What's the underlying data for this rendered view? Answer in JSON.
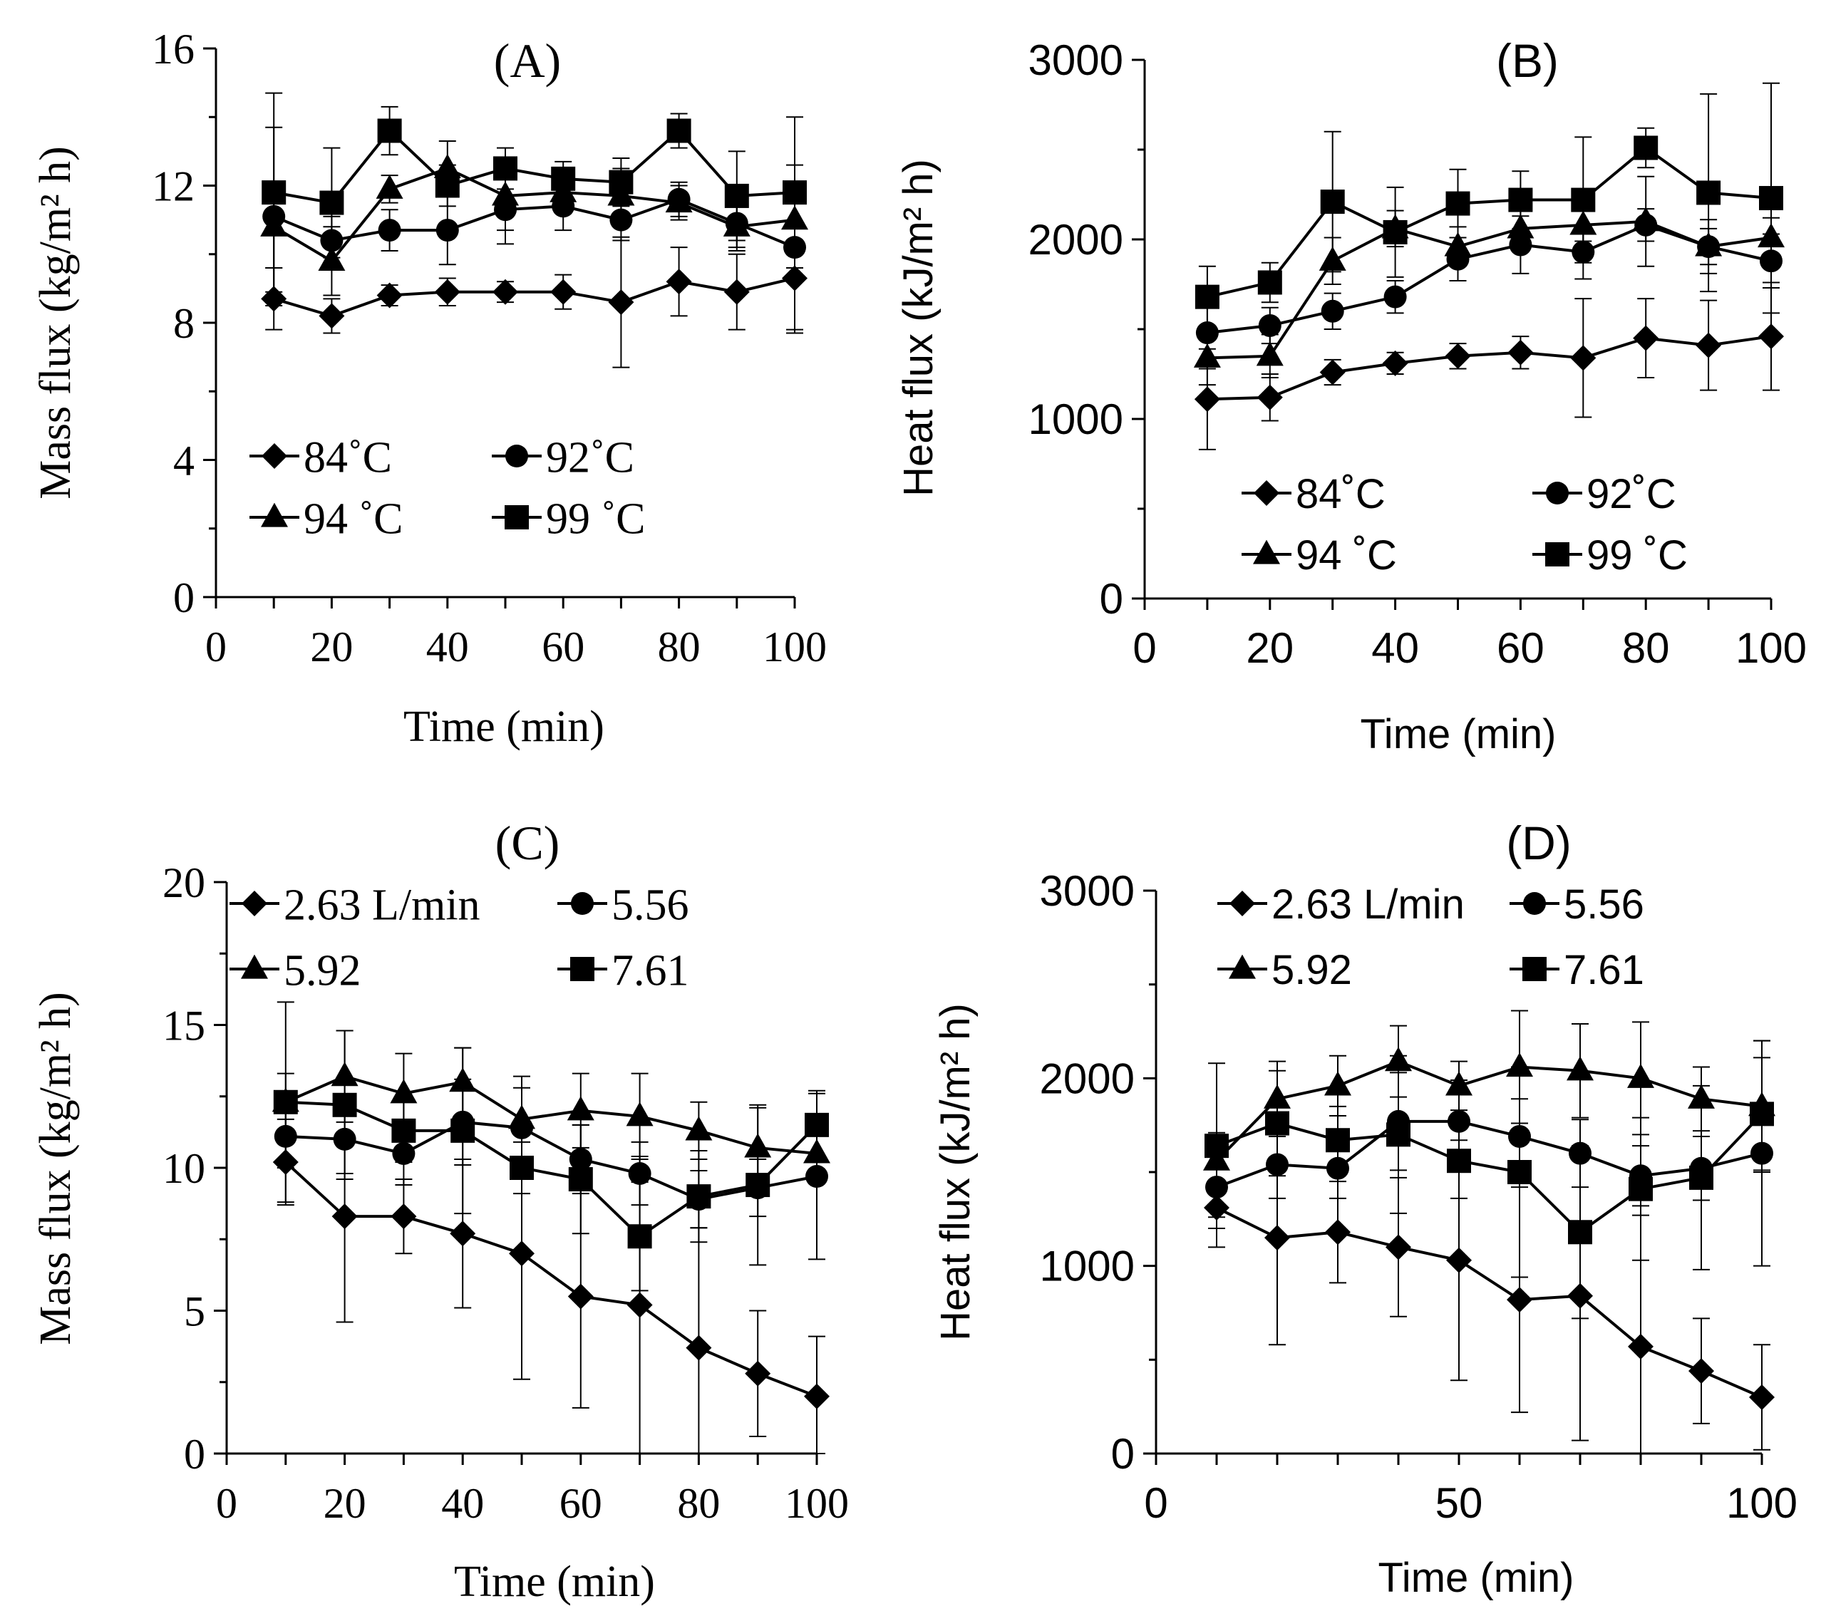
{
  "chart_data": [
    {
      "id": "A",
      "type": "line",
      "title": "(A)",
      "xlabel": "Time (min)",
      "ylabel": "Mass flux (kg/m² h)",
      "xlim": [
        0,
        100
      ],
      "ylim": [
        0,
        16
      ],
      "xticks": [
        "0",
        "20",
        "40",
        "60",
        "80",
        "100"
      ],
      "yticks": [
        "0",
        "4",
        "8",
        "12",
        "16"
      ],
      "x": [
        10,
        20,
        30,
        40,
        50,
        60,
        70,
        80,
        90,
        100
      ],
      "series": [
        {
          "name": "84˚C",
          "marker": "diamond",
          "values": [
            8.7,
            8.2,
            8.8,
            8.9,
            8.9,
            8.9,
            8.6,
            9.2,
            8.9,
            9.3
          ],
          "err": [
            0.9,
            0.5,
            0.3,
            0.4,
            0.3,
            0.5,
            1.9,
            1.0,
            1.1,
            1.6
          ]
        },
        {
          "name": "92˚C",
          "marker": "circle",
          "values": [
            11.1,
            10.4,
            10.7,
            10.7,
            11.3,
            11.4,
            11.0,
            11.6,
            10.9,
            10.2
          ],
          "err": [
            2.6,
            0.7,
            0.6,
            1.0,
            1.0,
            0.7,
            0.6,
            0.5,
            0.8,
            2.4
          ]
        },
        {
          "name": "94 ˚C",
          "marker": "triangle",
          "values": [
            10.8,
            9.8,
            11.9,
            12.5,
            11.7,
            11.8,
            11.7,
            11.5,
            10.8,
            11.0
          ],
          "err": [
            1.2,
            1.0,
            0.4,
            0.8,
            1.0,
            0.6,
            0.8,
            0.5,
            0.6,
            0.8
          ]
        },
        {
          "name": "99 ˚C",
          "marker": "square",
          "values": [
            11.8,
            11.5,
            13.6,
            12.0,
            12.5,
            12.2,
            12.1,
            13.6,
            11.7,
            11.8
          ],
          "err": [
            2.9,
            1.6,
            0.7,
            0.6,
            0.6,
            0.5,
            0.7,
            0.5,
            1.3,
            2.2
          ]
        }
      ],
      "legend": {
        "position": "lower-left",
        "columns": 2
      }
    },
    {
      "id": "B",
      "type": "line",
      "title": "(B)",
      "xlabel": "Time (min)",
      "ylabel": "Heat flux (kJ/m² h)",
      "xlim": [
        0,
        100
      ],
      "ylim": [
        0,
        3000
      ],
      "xticks": [
        "0",
        "20",
        "40",
        "60",
        "80",
        "100"
      ],
      "yticks": [
        "0",
        "1000",
        "2000",
        "3000"
      ],
      "x": [
        10,
        20,
        30,
        40,
        50,
        60,
        70,
        80,
        90,
        100
      ],
      "series": [
        {
          "name": "84˚C",
          "marker": "diamond",
          "values": [
            1110,
            1120,
            1260,
            1310,
            1350,
            1370,
            1340,
            1450,
            1410,
            1460
          ],
          "err": [
            280,
            130,
            70,
            60,
            70,
            90,
            330,
            220,
            250,
            300
          ]
        },
        {
          "name": "92˚C",
          "marker": "circle",
          "values": [
            1480,
            1520,
            1600,
            1680,
            1890,
            1970,
            1930,
            2080,
            1960,
            1880
          ],
          "err": [
            200,
            100,
            100,
            90,
            120,
            160,
            150,
            90,
            150,
            150
          ]
        },
        {
          "name": "94 ˚C",
          "marker": "triangle",
          "values": [
            1340,
            1350,
            1880,
            2060,
            1960,
            2060,
            2080,
            2100,
            1960,
            2010
          ],
          "err": [
            150,
            120,
            130,
            100,
            110,
            100,
            90,
            250,
            100,
            110
          ]
        },
        {
          "name": "99 ˚C",
          "marker": "square",
          "values": [
            1680,
            1760,
            2210,
            2040,
            2200,
            2220,
            2220,
            2510,
            2260,
            2230
          ],
          "err": [
            170,
            110,
            390,
            250,
            190,
            160,
            350,
            110,
            550,
            640
          ]
        }
      ],
      "legend": {
        "position": "lower-right",
        "columns": 2
      }
    },
    {
      "id": "C",
      "type": "line",
      "title": "(C)",
      "xlabel": "Time (min)",
      "ylabel": "Mass flux (kg/m² h)",
      "xlim": [
        0,
        100
      ],
      "ylim": [
        0,
        20
      ],
      "xticks": [
        "0",
        "20",
        "40",
        "60",
        "80",
        "100"
      ],
      "yticks": [
        "0",
        "5",
        "10",
        "15",
        "20"
      ],
      "x": [
        10,
        20,
        30,
        40,
        50,
        60,
        70,
        80,
        90,
        100
      ],
      "series": [
        {
          "name": "2.63 L/min",
          "marker": "diamond",
          "values": [
            10.2,
            8.3,
            8.3,
            7.7,
            7.0,
            5.5,
            5.2,
            3.7,
            2.8,
            2.0
          ],
          "err": [
            1.5,
            3.7,
            1.3,
            2.6,
            4.4,
            3.9,
            5.2,
            4.2,
            2.2,
            2.1
          ]
        },
        {
          "name": "5.56",
          "marker": "circle",
          "values": [
            11.1,
            11.0,
            10.5,
            11.6,
            11.4,
            10.3,
            9.8,
            8.9,
            9.3,
            9.7
          ],
          "err": [
            1.1,
            1.2,
            1.1,
            1.5,
            1.4,
            1.2,
            1.1,
            1.0,
            1.0,
            2.9
          ]
        },
        {
          "name": "5.92",
          "marker": "triangle",
          "values": [
            12.3,
            13.2,
            12.6,
            13.0,
            11.7,
            12.0,
            11.8,
            11.3,
            10.7,
            10.5
          ],
          "err": [
            1.0,
            1.6,
            1.4,
            1.2,
            1.5,
            1.3,
            1.5,
            1.0,
            1.4,
            1.0
          ]
        },
        {
          "name": "7.61",
          "marker": "square",
          "values": [
            12.3,
            12.2,
            11.3,
            11.3,
            10.0,
            9.6,
            7.6,
            9.0,
            9.4,
            11.5
          ],
          "err": [
            3.5,
            2.6,
            1.1,
            2.9,
            0.9,
            1.9,
            1.9,
            1.6,
            2.8,
            1.2
          ]
        }
      ],
      "legend": {
        "position": "top",
        "columns": 2
      }
    },
    {
      "id": "D",
      "type": "line",
      "title": "(D)",
      "xlabel": "Time (min)",
      "ylabel": "Heat flux (kJ/m² h)",
      "xlim": [
        0,
        100
      ],
      "ylim": [
        0,
        3000
      ],
      "xticks": [
        "0",
        "50",
        "100"
      ],
      "xtick_values": [
        0,
        50,
        100
      ],
      "yticks": [
        "0",
        "1000",
        "2000",
        "3000"
      ],
      "x": [
        10,
        20,
        30,
        40,
        50,
        60,
        70,
        80,
        90,
        100
      ],
      "series": [
        {
          "name": "2.63 L/min",
          "marker": "diamond",
          "values": [
            1310,
            1150,
            1180,
            1100,
            1030,
            820,
            840,
            570,
            440,
            300
          ],
          "err": [
            210,
            570,
            270,
            370,
            640,
            600,
            770,
            700,
            280,
            280
          ]
        },
        {
          "name": "5.56",
          "marker": "circle",
          "values": [
            1420,
            1540,
            1520,
            1770,
            1770,
            1690,
            1600,
            1480,
            1520,
            1600
          ],
          "err": [
            160,
            180,
            160,
            260,
            220,
            200,
            180,
            160,
            170,
            600
          ]
        },
        {
          "name": "5.92",
          "marker": "triangle",
          "values": [
            1560,
            1890,
            1960,
            2090,
            1960,
            2060,
            2040,
            2000,
            1890,
            1850
          ],
          "err": [
            150,
            200,
            160,
            190,
            130,
            300,
            250,
            300,
            170,
            350
          ]
        },
        {
          "name": "7.61",
          "marker": "square",
          "values": [
            1640,
            1760,
            1670,
            1700,
            1560,
            1500,
            1180,
            1410,
            1470,
            1810
          ],
          "err": [
            440,
            280,
            180,
            420,
            200,
            560,
            460,
            380,
            490,
            300
          ]
        }
      ],
      "legend": {
        "position": "top",
        "columns": 2
      }
    }
  ]
}
